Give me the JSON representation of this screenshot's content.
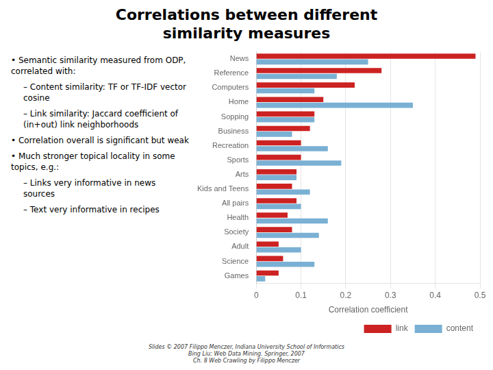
{
  "chart_data": {
    "type": "bar",
    "orientation": "horizontal",
    "title": [
      "Correlations between different",
      "similarity measures"
    ],
    "categories": [
      "News",
      "Reference",
      "Computers",
      "Home",
      "Sopping",
      "Business",
      "Recreation",
      "Sports",
      "Arts",
      "Kids and Teens",
      "All pairs",
      "Health",
      "Society",
      "Adult",
      "Science",
      "Games"
    ],
    "series": [
      {
        "name": "link",
        "color": "#cc2222",
        "values": [
          0.49,
          0.28,
          0.22,
          0.15,
          0.13,
          0.12,
          0.1,
          0.1,
          0.09,
          0.08,
          0.09,
          0.07,
          0.08,
          0.05,
          0.06,
          0.05
        ]
      },
      {
        "name": "content",
        "color": "#7ab0d4",
        "values": [
          0.25,
          0.18,
          0.13,
          0.35,
          0.13,
          0.08,
          0.16,
          0.19,
          0.09,
          0.12,
          0.1,
          0.16,
          0.14,
          0.1,
          0.13,
          0.02
        ]
      }
    ],
    "xlabel": "Correlation coefficient",
    "xlim": [
      0,
      0.5
    ],
    "xticks": [
      0,
      0.1,
      0.2,
      0.3,
      0.4,
      0.5
    ],
    "grid": true,
    "legend": "lower right",
    "annotations": [
      "• Semantic similarity measured from ODP, correlated with:",
      "– Content similarity: TF or TF-IDF vector cosine",
      "– Link similarity: Jaccard coefficient of (in+out) link neighborhoods",
      "• Correlation overall is significant but weak",
      "• Much stronger topical locality in some topics, e.g.:",
      "– Links very informative in news sources",
      "– Text very informative in recipes",
      "Slides © 2007 Filippo Menczer, Indiana University School of Informatics",
      "Bing Liu: Web Data Mining. Springer, 2007",
      "Ch. 8 Web Crawling by Filippo Menczer"
    ]
  }
}
